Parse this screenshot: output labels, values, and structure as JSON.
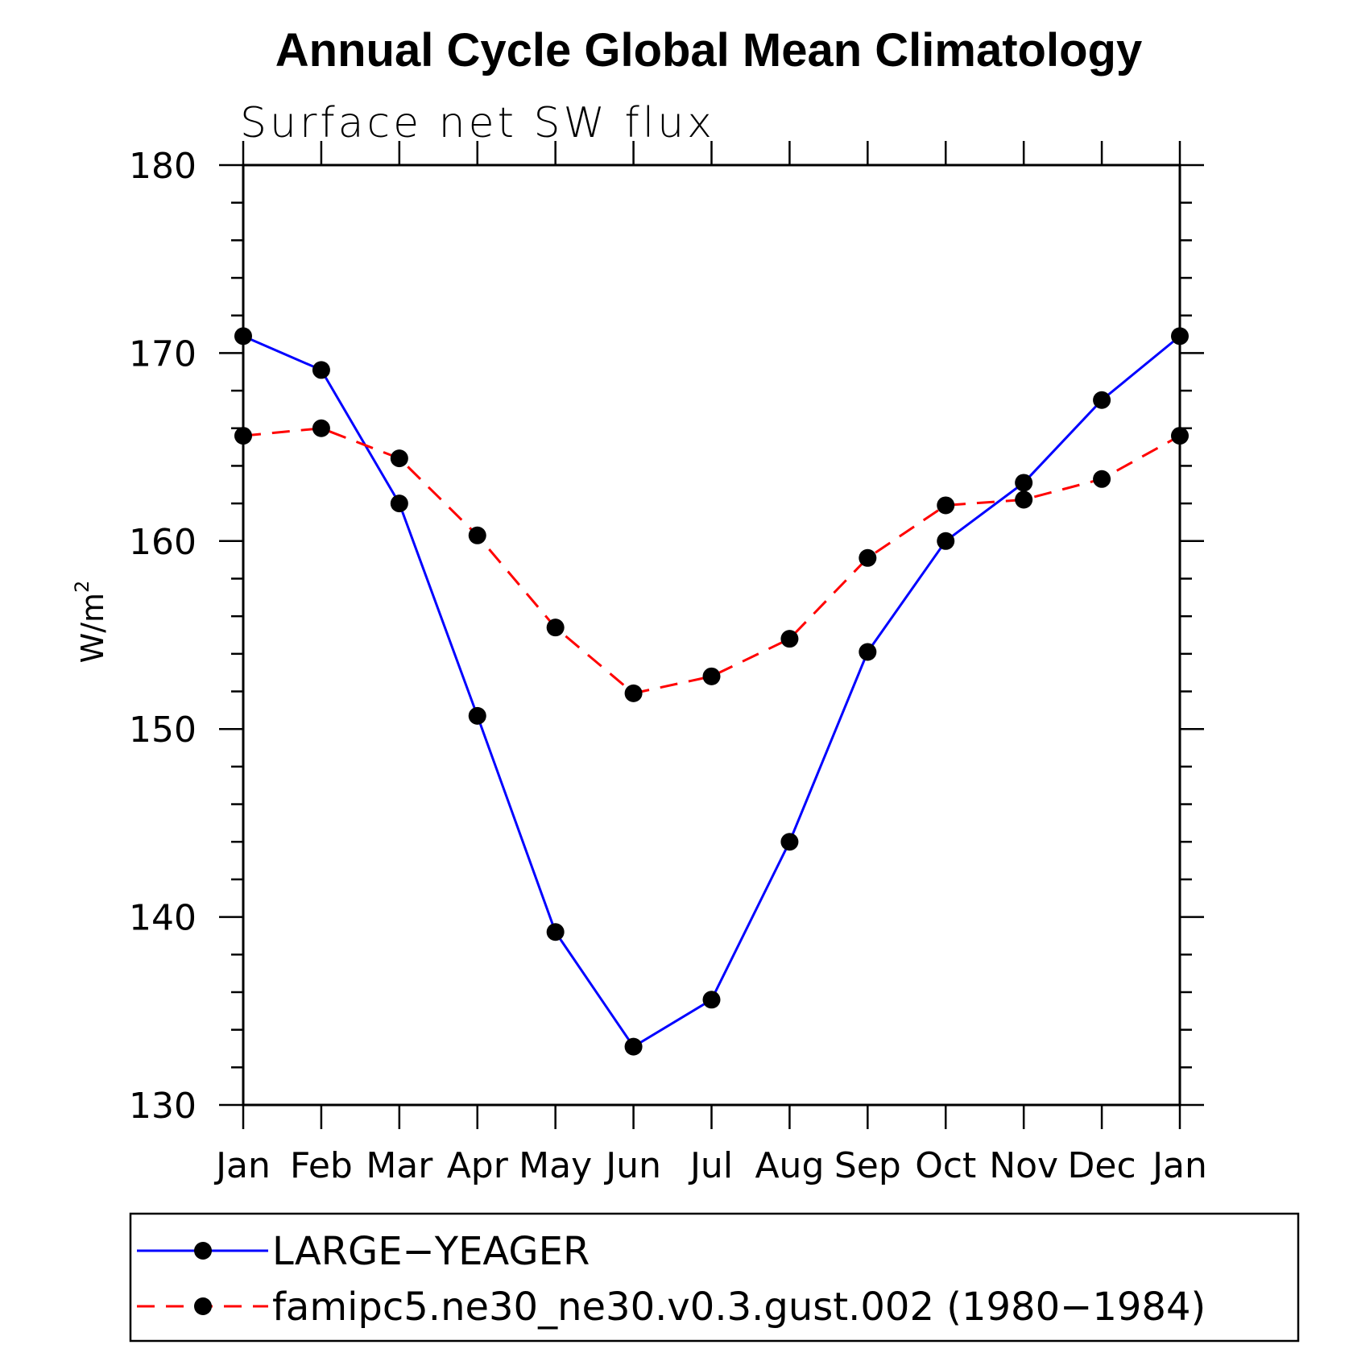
{
  "chart_data": {
    "type": "line",
    "title": "Annual Cycle Global Mean Climatology",
    "subtitle": "Surface net SW flux",
    "ylabel": "W/m",
    "ylabel_superscript": "2",
    "ylim": [
      130,
      180
    ],
    "yticks": [
      130,
      140,
      150,
      160,
      170,
      180
    ],
    "categories": [
      "Jan",
      "Feb",
      "Mar",
      "Apr",
      "May",
      "Jun",
      "Jul",
      "Aug",
      "Sep",
      "Oct",
      "Nov",
      "Dec",
      "Jan"
    ],
    "series": [
      {
        "name": "LARGE−YEAGER",
        "color": "#0000ff",
        "dash": "solid",
        "marker": "filled-circle",
        "values": [
          170.9,
          169.1,
          162.0,
          150.7,
          139.2,
          133.1,
          135.6,
          144.0,
          154.1,
          160.0,
          163.1,
          167.5,
          170.9
        ]
      },
      {
        "name": "famipc5.ne30_ne30.v0.3.gust.002 (1980−1984)",
        "color": "#ff0000",
        "dash": "dashed",
        "marker": "filled-circle",
        "values": [
          165.6,
          166.0,
          164.4,
          160.3,
          155.4,
          151.9,
          152.8,
          154.8,
          159.1,
          161.9,
          162.2,
          163.3,
          165.6
        ]
      }
    ],
    "grid": false,
    "legend_position": "below"
  }
}
